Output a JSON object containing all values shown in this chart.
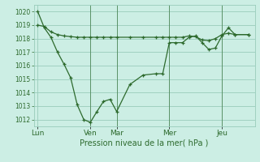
{
  "background_color": "#cceee4",
  "grid_color": "#99ccbb",
  "line_color": "#2d6a2d",
  "xlabel": "Pression niveau de la mer( hPa )",
  "ylim": [
    1011.5,
    1020.5
  ],
  "yticks": [
    1012,
    1013,
    1014,
    1015,
    1016,
    1017,
    1018,
    1019,
    1020
  ],
  "day_labels": [
    "Lun",
    "Ven",
    "Mar",
    "Mer",
    "Jeu"
  ],
  "day_positions": [
    0,
    4,
    6,
    10,
    14
  ],
  "total_points": 17,
  "line1_x": [
    0,
    0.5,
    1.0,
    1.5,
    2.0,
    2.5,
    3.0,
    3.5,
    4.0,
    4.5,
    5.0,
    5.5,
    6.0,
    7.0,
    8.0,
    9.0,
    9.5,
    10.0,
    10.5,
    11.0,
    11.5,
    12.0,
    12.5,
    13.0,
    13.5,
    14.0,
    14.5,
    15.0,
    16.0
  ],
  "line1_y": [
    1020.0,
    1018.8,
    1018.1,
    1017.0,
    1016.1,
    1015.1,
    1013.1,
    1012.0,
    1011.8,
    1012.6,
    1013.35,
    1013.5,
    1012.6,
    1014.6,
    1015.3,
    1015.4,
    1015.4,
    1017.7,
    1017.7,
    1017.7,
    1018.1,
    1018.2,
    1017.7,
    1017.2,
    1017.3,
    1018.2,
    1018.8,
    1018.3,
    1018.3
  ],
  "line2_x": [
    0,
    0.5,
    1.0,
    1.5,
    2.0,
    2.5,
    3.0,
    3.5,
    4.0,
    4.5,
    5.0,
    5.5,
    6.0,
    7.0,
    8.0,
    9.0,
    9.5,
    10.0,
    10.5,
    11.0,
    11.5,
    12.0,
    12.5,
    13.0,
    13.5,
    14.0,
    14.5,
    15.0,
    16.0
  ],
  "line2_y": [
    1019.0,
    1018.9,
    1018.5,
    1018.3,
    1018.2,
    1018.15,
    1018.1,
    1018.1,
    1018.1,
    1018.1,
    1018.1,
    1018.1,
    1018.1,
    1018.1,
    1018.1,
    1018.1,
    1018.1,
    1018.1,
    1018.1,
    1018.1,
    1018.2,
    1018.15,
    1017.9,
    1017.85,
    1018.0,
    1018.3,
    1018.4,
    1018.3,
    1018.3
  ],
  "vline_positions": [
    4,
    6,
    10,
    14
  ],
  "figsize": [
    3.2,
    2.0
  ],
  "dpi": 100
}
